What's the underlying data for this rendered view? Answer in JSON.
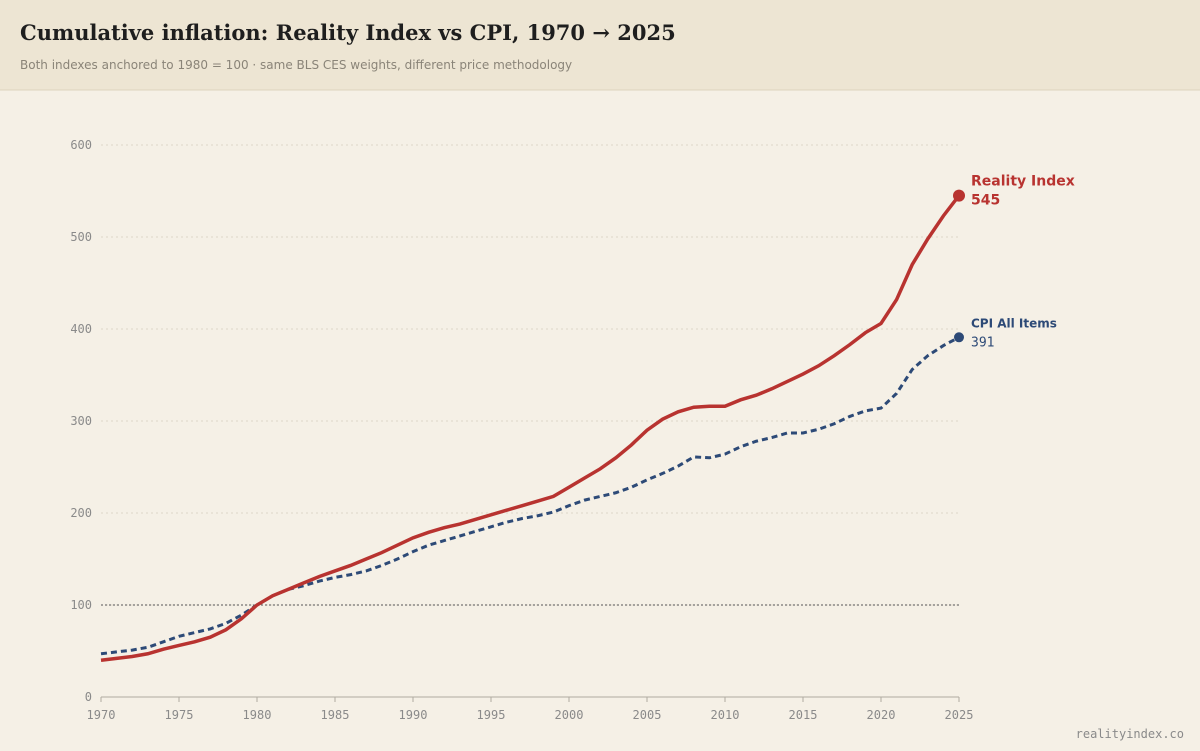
{
  "chart_data": {
    "type": "line",
    "title": "Cumulative inflation: Reality Index vs CPI, 1970 → 2025",
    "subtitle": "Both indexes anchored to 1980 = 100 · same BLS CES weights, different price methodology",
    "source": "realityindex.co",
    "x": [
      1970,
      1971,
      1972,
      1973,
      1974,
      1975,
      1976,
      1977,
      1978,
      1979,
      1980,
      1981,
      1982,
      1983,
      1984,
      1985,
      1986,
      1987,
      1988,
      1989,
      1990,
      1991,
      1992,
      1993,
      1994,
      1995,
      1996,
      1997,
      1998,
      1999,
      2000,
      2001,
      2002,
      2003,
      2004,
      2005,
      2006,
      2007,
      2008,
      2009,
      2010,
      2011,
      2012,
      2013,
      2014,
      2015,
      2016,
      2017,
      2018,
      2019,
      2020,
      2021,
      2022,
      2023,
      2024,
      2025
    ],
    "series": [
      {
        "name": "Reality Index",
        "color": "#b83330",
        "dashed": false,
        "values": [
          40,
          42,
          44,
          47,
          52,
          56,
          60,
          65,
          73,
          85,
          100,
          110,
          117,
          124,
          131,
          137,
          143,
          150,
          157,
          165,
          173,
          179,
          184,
          188,
          193,
          198,
          203,
          208,
          213,
          218,
          228,
          238,
          248,
          260,
          274,
          290,
          302,
          310,
          315,
          316,
          316,
          323,
          328,
          335,
          343,
          351,
          360,
          371,
          383,
          396,
          406,
          432,
          470,
          498,
          523,
          545
        ]
      },
      {
        "name": "CPI All Items",
        "color": "#2d4a77",
        "dashed": true,
        "values": [
          47,
          49,
          51,
          54,
          60,
          66,
          70,
          74,
          80,
          89,
          100,
          110,
          117,
          121,
          126,
          130,
          133,
          137,
          143,
          150,
          158,
          165,
          170,
          175,
          180,
          185,
          190,
          194,
          197,
          201,
          208,
          214,
          218,
          222,
          228,
          236,
          243,
          251,
          261,
          260,
          264,
          272,
          278,
          282,
          287,
          287,
          291,
          297,
          305,
          311,
          314,
          330,
          356,
          371,
          382,
          391
        ]
      }
    ],
    "reference_line": 100,
    "xlim": [
      1970,
      2025
    ],
    "xticks": [
      1970,
      1975,
      1980,
      1985,
      1990,
      1995,
      2000,
      2005,
      2010,
      2015,
      2020,
      2025
    ],
    "ylim": [
      0,
      600
    ],
    "yticks": [
      0,
      100,
      200,
      300,
      400,
      500,
      600
    ],
    "grid": true
  }
}
